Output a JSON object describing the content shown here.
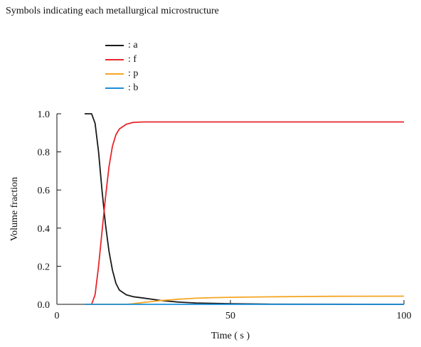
{
  "legend": {
    "title": "Symbols indicating each metallurgical microstructure",
    "entries": [
      {
        "label": ": a",
        "color": "#1a1a1a"
      },
      {
        "label": ": f",
        "color": "#e8262b"
      },
      {
        "label": ": p",
        "color": "#f5a623"
      },
      {
        "label": ": b",
        "color": "#1a8fd8"
      }
    ]
  },
  "chart_data": {
    "type": "line",
    "xlabel": "Time ( s )",
    "ylabel": "Volume fraction",
    "xlim": [
      0,
      100
    ],
    "ylim": [
      0,
      1.0
    ],
    "xticks": [
      0,
      50,
      100
    ],
    "yticks": [
      0.0,
      0.2,
      0.4,
      0.6,
      0.8,
      1.0
    ],
    "xtick_labels": [
      "0",
      "50",
      "100"
    ],
    "ytick_labels": [
      "0.0",
      "0.2",
      "0.4",
      "0.6",
      "0.8",
      "1.0"
    ],
    "grid": false,
    "legend_position": "top-left",
    "series": [
      {
        "name": "a",
        "color": "#1a1a1a",
        "x": [
          8,
          10,
          11,
          12,
          13,
          14,
          15,
          16,
          17,
          18,
          20,
          22,
          25,
          30,
          35,
          40,
          50,
          60,
          100
        ],
        "y": [
          1.0,
          1.0,
          0.95,
          0.8,
          0.6,
          0.42,
          0.28,
          0.18,
          0.11,
          0.075,
          0.05,
          0.04,
          0.033,
          0.02,
          0.012,
          0.007,
          0.003,
          0.001,
          0.0
        ]
      },
      {
        "name": "f",
        "color": "#e8262b",
        "x": [
          8,
          10,
          11,
          12,
          13,
          14,
          15,
          16,
          17,
          18,
          20,
          22,
          25,
          30,
          50,
          100
        ],
        "y": [
          0.0,
          0.0,
          0.05,
          0.2,
          0.38,
          0.56,
          0.72,
          0.83,
          0.89,
          0.92,
          0.945,
          0.955,
          0.957,
          0.957,
          0.957,
          0.957
        ]
      },
      {
        "name": "p",
        "color": "#f5a623",
        "x": [
          8,
          20,
          22,
          25,
          30,
          35,
          40,
          45,
          50,
          60,
          70,
          80,
          100
        ],
        "y": [
          0.0,
          0.0,
          0.003,
          0.01,
          0.02,
          0.027,
          0.032,
          0.035,
          0.037,
          0.039,
          0.041,
          0.042,
          0.043
        ]
      },
      {
        "name": "b",
        "color": "#1a8fd8",
        "x": [
          8,
          100
        ],
        "y": [
          0.0,
          0.0
        ]
      }
    ]
  }
}
